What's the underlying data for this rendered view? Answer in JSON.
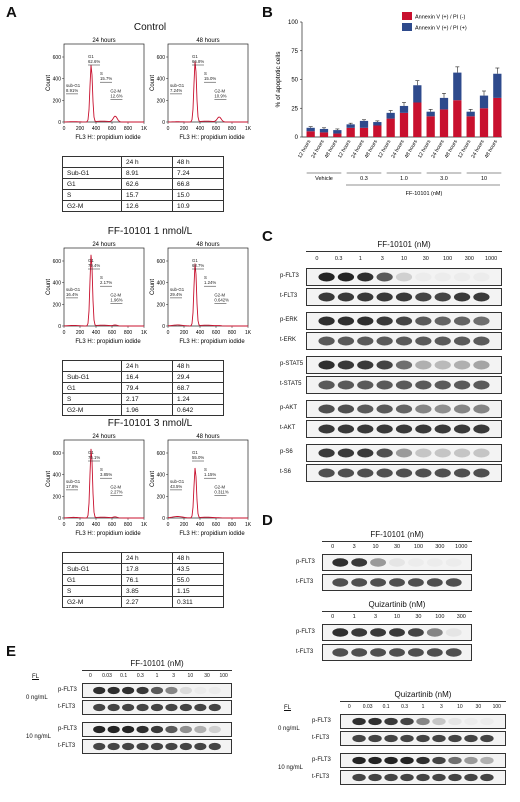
{
  "panels": {
    "A": "A",
    "B": "B",
    "C": "C",
    "D": "D",
    "E": "E"
  },
  "panelA": {
    "groups": [
      {
        "title": "Control",
        "h1": "24 hours",
        "h2": "48 hours",
        "rows": [
          [
            "",
            "24 h",
            "48 h"
          ],
          [
            "Sub-G1",
            "8.91",
            "7.24"
          ],
          [
            "G1",
            "62.6",
            "66.8"
          ],
          [
            "S",
            "15.7",
            "15.0"
          ],
          [
            "G2-M",
            "12.6",
            "10.9"
          ]
        ],
        "gates1": {
          "subg1": "8.91%",
          "g1": "62.6%",
          "s": "15.7%",
          "g2m": "12.6%"
        },
        "gates2": {
          "subg1": "7.24%",
          "g1": "66.8%",
          "s": "15.0%",
          "g2m": "10.9%"
        }
      },
      {
        "title": "FF-10101 1 nmol/L",
        "h1": "24 hours",
        "h2": "48 hours",
        "rows": [
          [
            "",
            "24 h",
            "48 h"
          ],
          [
            "Sub-G1",
            "16.4",
            "29.4"
          ],
          [
            "G1",
            "79.4",
            "68.7"
          ],
          [
            "S",
            "2.17",
            "1.24"
          ],
          [
            "G2-M",
            "1.96",
            "0.642"
          ]
        ],
        "gates1": {
          "subg1": "16.4%",
          "g1": "79.4%",
          "s": "2.17%",
          "g2m": "1.96%"
        },
        "gates2": {
          "subg1": "29.4%",
          "g1": "68.7%",
          "s": "1.24%",
          "g2m": "0.642%"
        }
      },
      {
        "title": "FF-10101 3 nmol/L",
        "h1": "24 hours",
        "h2": "48 hours",
        "rows": [
          [
            "",
            "24 h",
            "48 h"
          ],
          [
            "Sub-G1",
            "17.8",
            "43.5"
          ],
          [
            "G1",
            "76.1",
            "55.0"
          ],
          [
            "S",
            "3.85",
            "1.15"
          ],
          [
            "G2-M",
            "2.27",
            "0.311"
          ]
        ],
        "gates1": {
          "subg1": "17.8%",
          "g1": "76.1%",
          "s": "3.85%",
          "g2m": "2.27%"
        },
        "gates2": {
          "subg1": "43.5%",
          "g1": "55.0%",
          "s": "1.15%",
          "g2m": "0.311%"
        }
      }
    ],
    "y_label": "Count",
    "x_label": "FL3 H:: propidium iodide",
    "y_ticks": [
      "0",
      "200",
      "400",
      "600"
    ],
    "x_ticks": [
      "0",
      "200",
      "400",
      "600",
      "800",
      "1K"
    ],
    "gate_names": {
      "subg1": "sub-G1",
      "g1": "G1",
      "s": "S",
      "g2m": "G2-M"
    }
  },
  "chart_data": {
    "type": "bar",
    "stacked": true,
    "ylabel": "% of apoptotic cells",
    "ylim": [
      0,
      100
    ],
    "y_ticks": [
      "0",
      "25",
      "50",
      "75",
      "100"
    ],
    "categories": [
      "12 hours",
      "24 hours",
      "48 hours",
      "12 hours",
      "24 hours",
      "48 hours",
      "12 hours",
      "24 hours",
      "48 hours",
      "12 hours",
      "24 hours",
      "48 hours",
      "12 hours",
      "24 hours",
      "48 hours"
    ],
    "groups": [
      "Vehicle",
      "0.3",
      "1.0",
      "3.0",
      "10"
    ],
    "group_caption": "FF-10101 (nM)",
    "series": [
      {
        "name": "Annexin V (+) / PI (-)",
        "color": "#c8102e",
        "values": [
          5,
          4,
          3,
          8,
          8,
          10,
          16,
          21,
          30,
          18,
          24,
          32,
          18,
          25,
          34
        ]
      },
      {
        "name": "Annexin V (+) / PI (+)",
        "color": "#2e4a8c",
        "values": [
          3,
          3,
          3,
          3,
          6,
          3,
          5,
          6,
          15,
          4,
          10,
          24,
          4,
          11,
          21
        ]
      }
    ],
    "errors": [
      1,
      1,
      1,
      1,
      1,
      1,
      2,
      3,
      4,
      2,
      4,
      5,
      2,
      4,
      5
    ]
  },
  "panelC": {
    "title": "FF-10101 (nM)",
    "lanes": [
      "0",
      "0.3",
      "1",
      "3",
      "10",
      "30",
      "100",
      "300",
      "1000"
    ],
    "rows": [
      {
        "label": "p-FLT3",
        "i": [
          0.95,
          0.95,
          0.9,
          0.7,
          0.15,
          0.02,
          0.02,
          0.02,
          0.02
        ]
      },
      {
        "label": "t-FLT3",
        "i": [
          0.85,
          0.85,
          0.85,
          0.85,
          0.85,
          0.8,
          0.8,
          0.85,
          0.85
        ]
      },
      {
        "label": "p-ERK",
        "i": [
          0.9,
          0.9,
          0.9,
          0.85,
          0.8,
          0.7,
          0.65,
          0.65,
          0.6
        ]
      },
      {
        "label": "t-ERK",
        "i": [
          0.7,
          0.7,
          0.7,
          0.7,
          0.7,
          0.7,
          0.7,
          0.7,
          0.7
        ]
      },
      {
        "label": "p-STAT5",
        "i": [
          0.9,
          0.85,
          0.85,
          0.8,
          0.6,
          0.3,
          0.25,
          0.3,
          0.35
        ]
      },
      {
        "label": "t-STAT5",
        "i": [
          0.7,
          0.7,
          0.7,
          0.7,
          0.7,
          0.7,
          0.7,
          0.7,
          0.7
        ]
      },
      {
        "label": "p-AKT",
        "i": [
          0.75,
          0.75,
          0.7,
          0.7,
          0.65,
          0.5,
          0.45,
          0.5,
          0.5
        ]
      },
      {
        "label": "t-AKT",
        "i": [
          0.85,
          0.85,
          0.85,
          0.85,
          0.85,
          0.85,
          0.85,
          0.85,
          0.85
        ]
      },
      {
        "label": "p-S6",
        "i": [
          0.85,
          0.85,
          0.85,
          0.75,
          0.4,
          0.2,
          0.2,
          0.2,
          0.2
        ]
      },
      {
        "label": "t-S6",
        "i": [
          0.75,
          0.75,
          0.75,
          0.75,
          0.75,
          0.75,
          0.75,
          0.75,
          0.75
        ]
      }
    ]
  },
  "panelD": {
    "sets": [
      {
        "title": "FF-10101 (nM)",
        "lanes": [
          "0",
          "3",
          "10",
          "30",
          "100",
          "300",
          "1000"
        ],
        "rows": [
          {
            "label": "p-FLT3",
            "i": [
              0.9,
              0.85,
              0.4,
              0.05,
              0.02,
              0.02,
              0.02
            ]
          },
          {
            "label": "t-FLT3",
            "i": [
              0.75,
              0.75,
              0.75,
              0.75,
              0.75,
              0.75,
              0.75
            ]
          }
        ]
      },
      {
        "title": "Quizartinib (nM)",
        "lanes": [
          "0",
          "1",
          "3",
          "10",
          "30",
          "100",
          "300"
        ],
        "rows": [
          {
            "label": "p-FLT3",
            "i": [
              0.9,
              0.85,
              0.85,
              0.85,
              0.8,
              0.5,
              0.05
            ]
          },
          {
            "label": "t-FLT3",
            "i": [
              0.75,
              0.75,
              0.75,
              0.75,
              0.75,
              0.75,
              0.75
            ]
          }
        ]
      }
    ]
  },
  "panelE": {
    "fl_label": "FL",
    "doses": [
      "0 ng/mL",
      "10 ng/mL"
    ],
    "sets": [
      {
        "title": "FF-10101 (nM)",
        "lanes": [
          "0",
          "0.03",
          "0.1",
          "0.3",
          "1",
          "3",
          "10",
          "30",
          "100"
        ],
        "rows": [
          {
            "label": "p-FLT3",
            "i": [
              0.9,
              0.9,
              0.9,
              0.85,
              0.7,
              0.5,
              0.1,
              0.02,
              0.02
            ]
          },
          {
            "label": "t-FLT3",
            "i": [
              0.8,
              0.8,
              0.8,
              0.8,
              0.8,
              0.8,
              0.8,
              0.8,
              0.8
            ]
          },
          {
            "label": "p-FLT3",
            "i": [
              0.95,
              0.95,
              0.95,
              0.9,
              0.85,
              0.7,
              0.45,
              0.3,
              0.15
            ]
          },
          {
            "label": "t-FLT3",
            "i": [
              0.8,
              0.8,
              0.8,
              0.8,
              0.8,
              0.8,
              0.8,
              0.8,
              0.8
            ]
          }
        ]
      },
      {
        "title": "Quizartinib (nM)",
        "lanes": [
          "0",
          "0.03",
          "0.1",
          "0.3",
          "1",
          "3",
          "10",
          "30",
          "100"
        ],
        "rows": [
          {
            "label": "p-FLT3",
            "i": [
              0.9,
              0.9,
              0.85,
              0.8,
              0.5,
              0.2,
              0.05,
              0.02,
              0.02
            ]
          },
          {
            "label": "t-FLT3",
            "i": [
              0.8,
              0.8,
              0.8,
              0.8,
              0.8,
              0.8,
              0.8,
              0.8,
              0.8
            ]
          },
          {
            "label": "p-FLT3",
            "i": [
              0.95,
              0.95,
              0.95,
              0.95,
              0.9,
              0.8,
              0.6,
              0.4,
              0.3
            ]
          },
          {
            "label": "t-FLT3",
            "i": [
              0.8,
              0.8,
              0.8,
              0.8,
              0.8,
              0.8,
              0.8,
              0.8,
              0.8
            ]
          }
        ]
      }
    ]
  }
}
